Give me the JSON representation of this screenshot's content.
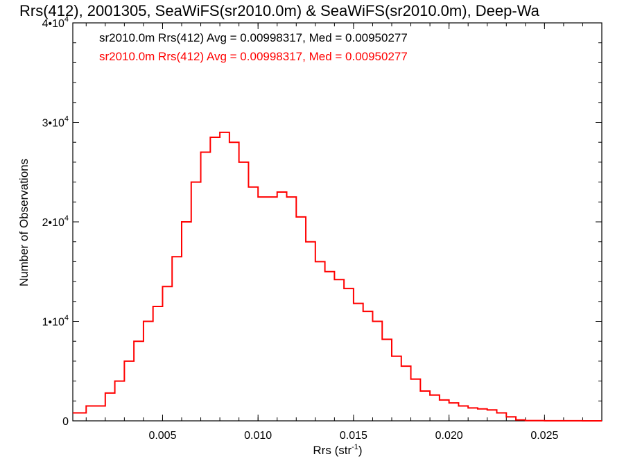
{
  "chart_data": {
    "type": "line",
    "title": "Rrs(412), 2001305, SeaWiFS(sr2010.0m) & SeaWiFS(sr2010.0m), Deep-Wa",
    "xlabel": {
      "base": "Rrs (str",
      "sup": "-1",
      "close": ")"
    },
    "ylabel": "Number of Observations",
    "xlim": [
      0.0003,
      0.028
    ],
    "ylim": [
      0,
      40000
    ],
    "x_ticks": [
      {
        "value": 0.005,
        "label": "0.005"
      },
      {
        "value": 0.01,
        "label": "0.010"
      },
      {
        "value": 0.015,
        "label": "0.015"
      },
      {
        "value": 0.02,
        "label": "0.020"
      },
      {
        "value": 0.025,
        "label": "0.025"
      }
    ],
    "y_ticks": [
      {
        "value": 0,
        "label": "0",
        "exp": ""
      },
      {
        "value": 10000,
        "label": "1•10",
        "exp": "4"
      },
      {
        "value": 20000,
        "label": "2•10",
        "exp": "4"
      },
      {
        "value": 30000,
        "label": "3•10",
        "exp": "4"
      },
      {
        "value": 40000,
        "label": "4•10",
        "exp": "4"
      }
    ],
    "x_minor_step": 0.001,
    "y_minor_step": 2000,
    "legend": [
      {
        "text": "sr2010.0m Rrs(412) Avg = 0.00998317, Med = 0.00950277",
        "color": "#000000"
      },
      {
        "text": "sr2010.0m Rrs(412) Avg = 0.00998317, Med = 0.00950277",
        "color": "#ff0000"
      }
    ],
    "series": [
      {
        "color": "#ff0000",
        "x": [
          0.0003,
          0.001,
          0.002,
          0.0025,
          0.003,
          0.0035,
          0.004,
          0.0045,
          0.005,
          0.0055,
          0.006,
          0.0065,
          0.007,
          0.0075,
          0.008,
          0.0085,
          0.009,
          0.0095,
          0.01,
          0.0105,
          0.011,
          0.0115,
          0.012,
          0.0125,
          0.013,
          0.0135,
          0.014,
          0.0145,
          0.015,
          0.0155,
          0.016,
          0.0165,
          0.017,
          0.0175,
          0.018,
          0.0185,
          0.019,
          0.0195,
          0.02,
          0.0205,
          0.021,
          0.0215,
          0.022,
          0.0225,
          0.023,
          0.0235,
          0.024,
          0.025,
          0.026,
          0.027,
          0.028
        ],
        "y": [
          800,
          1500,
          2800,
          4000,
          6000,
          8000,
          10000,
          11500,
          13500,
          16500,
          20000,
          24000,
          27000,
          28500,
          29000,
          28000,
          26000,
          23500,
          22500,
          22500,
          23000,
          22500,
          20500,
          18000,
          16000,
          15000,
          14200,
          13300,
          11800,
          11000,
          10000,
          8200,
          6500,
          5500,
          4200,
          3000,
          2600,
          2100,
          1800,
          1500,
          1300,
          1200,
          1100,
          800,
          400,
          100,
          30,
          10,
          5,
          0,
          0
        ]
      }
    ]
  }
}
